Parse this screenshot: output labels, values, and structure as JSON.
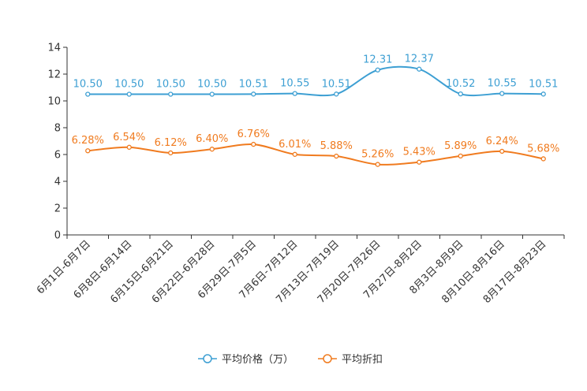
{
  "chart_data": {
    "type": "line",
    "title": "",
    "xlabel": "",
    "ylabel": "",
    "ylim": [
      0,
      14
    ],
    "yticks": [
      0,
      2,
      4,
      6,
      8,
      10,
      12,
      14
    ],
    "grid": false,
    "legend_position": "bottom-center",
    "categories": [
      "6月1日-6月7日",
      "6月8日-6月14日",
      "6月15日-6月21日",
      "6月22日-6月28日",
      "6月29日-7月5日",
      "7月6日-7月12日",
      "7月13日-7月19日",
      "7月20日-7月26日",
      "7月27日-8月2日",
      "8月3日-8月9日",
      "8月10日-8月16日",
      "8月17日-8月23日"
    ],
    "series": [
      {
        "name": "平均价格（万）",
        "color": "#3d9fd3",
        "values": [
          10.5,
          10.5,
          10.5,
          10.5,
          10.51,
          10.55,
          10.51,
          12.31,
          12.37,
          10.52,
          10.55,
          10.51
        ],
        "labels": [
          "10.50",
          "10.50",
          "10.50",
          "10.50",
          "10.51",
          "10.55",
          "10.51",
          "12.31",
          "12.37",
          "10.52",
          "10.55",
          "10.51"
        ]
      },
      {
        "name": "平均折扣",
        "color": "#f07b1f",
        "values": [
          6.28,
          6.54,
          6.12,
          6.4,
          6.76,
          6.01,
          5.88,
          5.26,
          5.43,
          5.89,
          6.24,
          5.68
        ],
        "labels": [
          "6.28%",
          "6.54%",
          "6.12%",
          "6.40%",
          "6.76%",
          "6.01%",
          "5.88%",
          "5.26%",
          "5.43%",
          "5.89%",
          "6.24%",
          "5.68%"
        ]
      }
    ]
  }
}
